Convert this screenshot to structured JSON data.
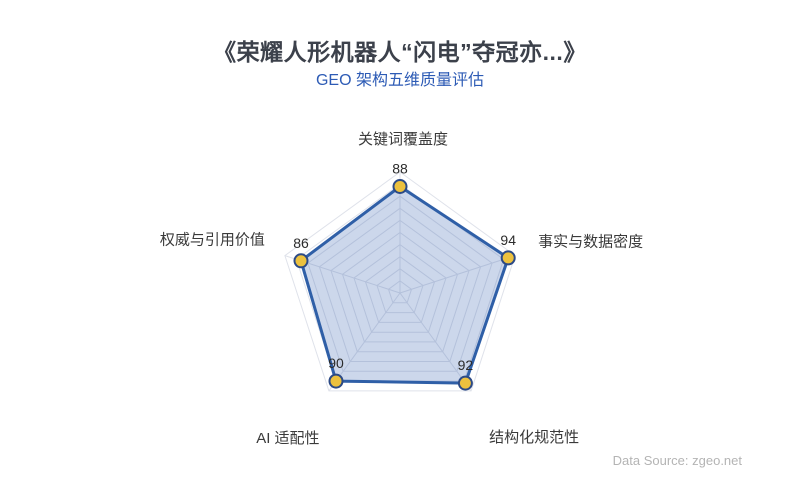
{
  "page": {
    "title": "《荣耀人形机器人“闪电”夺冠亦...》",
    "subtitle": "GEO 架构五维质量评估",
    "source": "Data Source: zgeo.net"
  },
  "chart_data": {
    "type": "radar",
    "title": "GEO 架构五维质量评估",
    "axis_order": "clockwise-from-top",
    "scale": {
      "min": 0,
      "max": 100,
      "rings": 10
    },
    "indicators": [
      "关键词覆盖度",
      "事实与数据密度",
      "结构化规范性",
      "AI 适配性",
      "权威与引用价值"
    ],
    "series": [
      {
        "name": "GEO 架构五维质量评估",
        "values": [
          88,
          94,
          92,
          90,
          86
        ]
      }
    ],
    "grid": true,
    "legend_position": "none",
    "colors": {
      "series_line": "#2f5fa7",
      "series_fill": "rgba(58,102,176,0.26)",
      "point_fill": "#ecc13e",
      "point_border": "#2c4a86",
      "grid_line": "#dfe2ea",
      "axis_label": "#3a3a3a",
      "value_label": "#2b2b2b",
      "title": "#3c414b",
      "subtitle": "#2d5bb5",
      "source": "#b4b4b4"
    }
  }
}
